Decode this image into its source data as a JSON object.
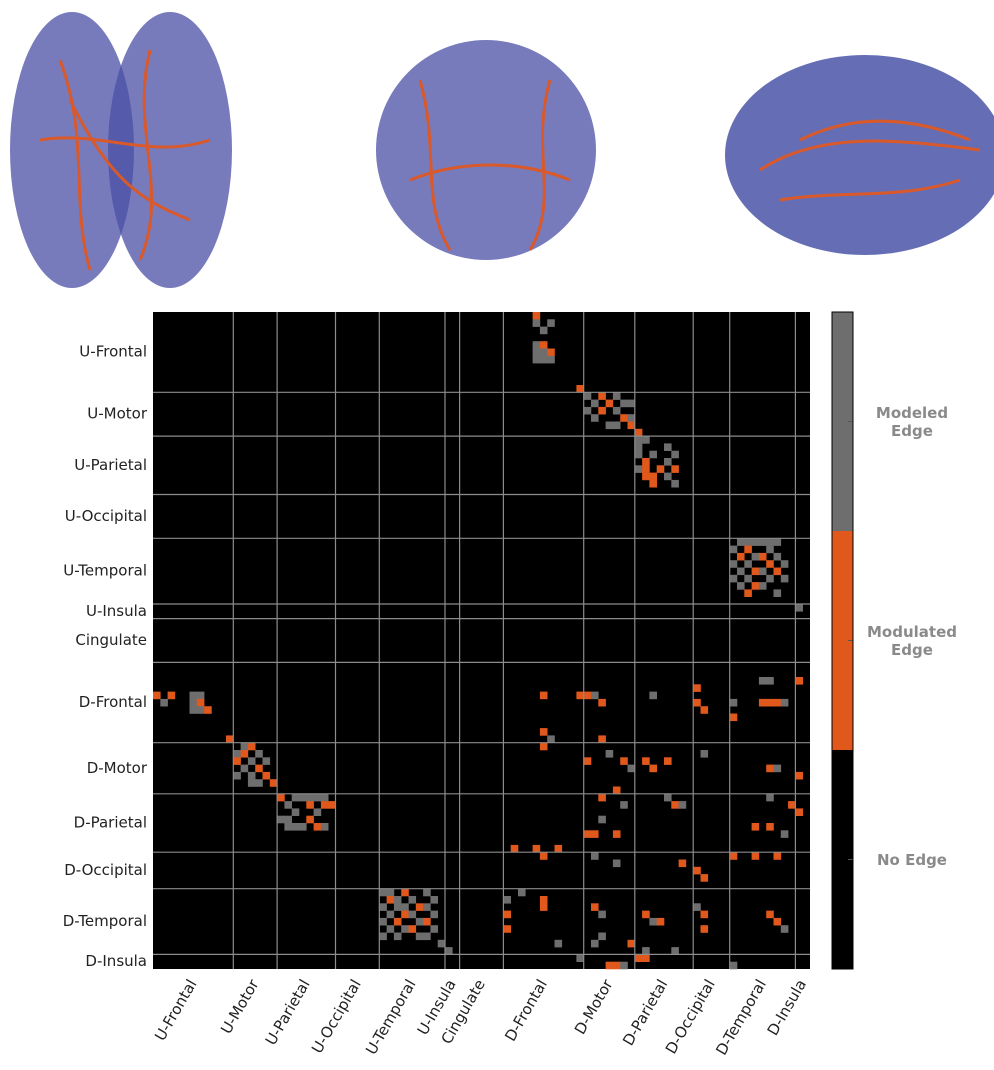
{
  "chart_data": {
    "type": "heatmap",
    "region_labels": [
      "U-Frontal",
      "U-Motor",
      "U-Parietal",
      "U-Occipital",
      "U-Temporal",
      "U-Insula",
      "Cingulate",
      "D-Frontal",
      "D-Motor",
      "D-Parietal",
      "D-Occipital",
      "D-Temporal",
      "D-Insula"
    ],
    "boundaries": [
      0,
      11,
      17,
      25,
      31,
      40,
      42,
      48,
      59,
      66,
      74,
      79,
      88,
      90
    ],
    "value_colors": [
      "#000000",
      "#6e6e6e",
      "#e0581c"
    ],
    "legend": [
      {
        "value": 1,
        "label": "Modeled Edge"
      },
      {
        "value": 2,
        "label": "Modulated Edge"
      },
      {
        "value": 0,
        "label": "No Edge"
      }
    ],
    "cells": [
      [
        0,
        52,
        2
      ],
      [
        1,
        52,
        1
      ],
      [
        1,
        54,
        1
      ],
      [
        2,
        53,
        1
      ],
      [
        4,
        52,
        1
      ],
      [
        4,
        53,
        2
      ],
      [
        5,
        52,
        1
      ],
      [
        5,
        53,
        1
      ],
      [
        5,
        54,
        2
      ],
      [
        6,
        52,
        1
      ],
      [
        6,
        53,
        1
      ],
      [
        6,
        54,
        1
      ],
      [
        10,
        58,
        2
      ],
      [
        11,
        59,
        1
      ],
      [
        11,
        61,
        2
      ],
      [
        11,
        63,
        1
      ],
      [
        12,
        60,
        1
      ],
      [
        12,
        62,
        2
      ],
      [
        12,
        64,
        1
      ],
      [
        12,
        65,
        1
      ],
      [
        13,
        59,
        1
      ],
      [
        13,
        61,
        2
      ],
      [
        13,
        63,
        1
      ],
      [
        14,
        60,
        1
      ],
      [
        14,
        64,
        2
      ],
      [
        14,
        65,
        1
      ],
      [
        15,
        62,
        1
      ],
      [
        15,
        63,
        1
      ],
      [
        15,
        65,
        2
      ],
      [
        16,
        66,
        2
      ],
      [
        17,
        66,
        1
      ],
      [
        17,
        67,
        1
      ],
      [
        18,
        66,
        1
      ],
      [
        18,
        70,
        1
      ],
      [
        19,
        66,
        1
      ],
      [
        19,
        68,
        1
      ],
      [
        19,
        71,
        1
      ],
      [
        20,
        67,
        2
      ],
      [
        20,
        70,
        1
      ],
      [
        21,
        66,
        1
      ],
      [
        21,
        67,
        2
      ],
      [
        21,
        69,
        2
      ],
      [
        21,
        71,
        2
      ],
      [
        22,
        67,
        2
      ],
      [
        22,
        68,
        2
      ],
      [
        22,
        70,
        1
      ],
      [
        23,
        68,
        2
      ],
      [
        23,
        71,
        1
      ],
      [
        31,
        80,
        1
      ],
      [
        31,
        81,
        1
      ],
      [
        31,
        82,
        1
      ],
      [
        31,
        83,
        1
      ],
      [
        31,
        84,
        1
      ],
      [
        31,
        85,
        1
      ],
      [
        32,
        79,
        1
      ],
      [
        32,
        81,
        2
      ],
      [
        32,
        84,
        1
      ],
      [
        33,
        80,
        2
      ],
      [
        33,
        82,
        1
      ],
      [
        33,
        83,
        2
      ],
      [
        33,
        85,
        1
      ],
      [
        34,
        79,
        1
      ],
      [
        34,
        81,
        1
      ],
      [
        34,
        84,
        2
      ],
      [
        34,
        86,
        1
      ],
      [
        35,
        80,
        1
      ],
      [
        35,
        82,
        2
      ],
      [
        35,
        83,
        1
      ],
      [
        35,
        85,
        2
      ],
      [
        36,
        79,
        1
      ],
      [
        36,
        81,
        1
      ],
      [
        36,
        84,
        1
      ],
      [
        36,
        86,
        1
      ],
      [
        37,
        80,
        1
      ],
      [
        37,
        82,
        2
      ],
      [
        37,
        83,
        1
      ],
      [
        38,
        81,
        2
      ],
      [
        38,
        85,
        1
      ],
      [
        40,
        88,
        1
      ],
      [
        52,
        0,
        2
      ],
      [
        52,
        2,
        2
      ],
      [
        52,
        5,
        1
      ],
      [
        52,
        6,
        1
      ],
      [
        53,
        1,
        1
      ],
      [
        53,
        5,
        1
      ],
      [
        53,
        6,
        2
      ],
      [
        54,
        5,
        1
      ],
      [
        54,
        6,
        1
      ],
      [
        54,
        7,
        2
      ],
      [
        58,
        10,
        2
      ],
      [
        59,
        12,
        1
      ],
      [
        59,
        13,
        2
      ],
      [
        60,
        11,
        1
      ],
      [
        60,
        12,
        2
      ],
      [
        60,
        14,
        1
      ],
      [
        61,
        11,
        2
      ],
      [
        61,
        13,
        1
      ],
      [
        61,
        15,
        1
      ],
      [
        62,
        12,
        1
      ],
      [
        62,
        14,
        2
      ],
      [
        63,
        11,
        1
      ],
      [
        63,
        13,
        1
      ],
      [
        63,
        15,
        2
      ],
      [
        64,
        13,
        1
      ],
      [
        64,
        14,
        1
      ],
      [
        64,
        16,
        2
      ],
      [
        66,
        17,
        2
      ],
      [
        66,
        19,
        1
      ],
      [
        66,
        20,
        1
      ],
      [
        66,
        21,
        1
      ],
      [
        66,
        22,
        1
      ],
      [
        66,
        23,
        1
      ],
      [
        67,
        18,
        1
      ],
      [
        67,
        21,
        2
      ],
      [
        67,
        23,
        2
      ],
      [
        67,
        24,
        2
      ],
      [
        68,
        19,
        1
      ],
      [
        68,
        22,
        1
      ],
      [
        69,
        17,
        1
      ],
      [
        69,
        18,
        1
      ],
      [
        69,
        21,
        2
      ],
      [
        70,
        18,
        1
      ],
      [
        70,
        19,
        1
      ],
      [
        70,
        20,
        1
      ],
      [
        70,
        22,
        2
      ],
      [
        70,
        23,
        1
      ],
      [
        79,
        31,
        1
      ],
      [
        79,
        32,
        1
      ],
      [
        79,
        34,
        2
      ],
      [
        79,
        37,
        1
      ],
      [
        80,
        32,
        2
      ],
      [
        80,
        33,
        1
      ],
      [
        80,
        35,
        1
      ],
      [
        80,
        38,
        1
      ],
      [
        81,
        31,
        1
      ],
      [
        81,
        33,
        1
      ],
      [
        81,
        34,
        1
      ],
      [
        81,
        36,
        2
      ],
      [
        81,
        37,
        1
      ],
      [
        82,
        32,
        1
      ],
      [
        82,
        34,
        2
      ],
      [
        82,
        35,
        1
      ],
      [
        82,
        38,
        1
      ],
      [
        83,
        31,
        1
      ],
      [
        83,
        33,
        2
      ],
      [
        83,
        36,
        1
      ],
      [
        83,
        37,
        2
      ],
      [
        84,
        32,
        1
      ],
      [
        84,
        34,
        1
      ],
      [
        84,
        35,
        2
      ],
      [
        84,
        38,
        1
      ],
      [
        85,
        31,
        1
      ],
      [
        85,
        33,
        1
      ],
      [
        85,
        36,
        1
      ],
      [
        85,
        37,
        1
      ],
      [
        86,
        39,
        1
      ],
      [
        87,
        40,
        1
      ],
      [
        50,
        83,
        1
      ],
      [
        50,
        84,
        1
      ],
      [
        50,
        88,
        2
      ],
      [
        52,
        53,
        2
      ],
      [
        52,
        58,
        2
      ],
      [
        52,
        59,
        2
      ],
      [
        52,
        60,
        1
      ],
      [
        53,
        61,
        2
      ],
      [
        52,
        68,
        1
      ],
      [
        51,
        74,
        2
      ],
      [
        53,
        74,
        2
      ],
      [
        54,
        75,
        2
      ],
      [
        53,
        79,
        1
      ],
      [
        53,
        83,
        2
      ],
      [
        53,
        84,
        2
      ],
      [
        53,
        85,
        2
      ],
      [
        53,
        86,
        1
      ],
      [
        55,
        79,
        2
      ],
      [
        57,
        53,
        2
      ],
      [
        58,
        54,
        1
      ],
      [
        59,
        53,
        2
      ],
      [
        58,
        61,
        2
      ],
      [
        60,
        62,
        1
      ],
      [
        61,
        59,
        2
      ],
      [
        61,
        64,
        2
      ],
      [
        62,
        65,
        1
      ],
      [
        61,
        67,
        2
      ],
      [
        62,
        68,
        2
      ],
      [
        61,
        70,
        2
      ],
      [
        60,
        75,
        1
      ],
      [
        62,
        84,
        2
      ],
      [
        62,
        85,
        1
      ],
      [
        63,
        88,
        2
      ],
      [
        65,
        63,
        2
      ],
      [
        66,
        61,
        2
      ],
      [
        67,
        64,
        1
      ],
      [
        66,
        70,
        1
      ],
      [
        67,
        71,
        2
      ],
      [
        67,
        72,
        1
      ],
      [
        66,
        84,
        1
      ],
      [
        67,
        87,
        2
      ],
      [
        68,
        88,
        2
      ],
      [
        69,
        61,
        1
      ],
      [
        71,
        59,
        2
      ],
      [
        71,
        60,
        2
      ],
      [
        71,
        63,
        2
      ],
      [
        70,
        82,
        2
      ],
      [
        70,
        84,
        2
      ],
      [
        71,
        86,
        1
      ],
      [
        73,
        49,
        2
      ],
      [
        73,
        52,
        2
      ],
      [
        74,
        53,
        2
      ],
      [
        73,
        55,
        2
      ],
      [
        74,
        60,
        1
      ],
      [
        75,
        63,
        1
      ],
      [
        74,
        79,
        2
      ],
      [
        74,
        82,
        2
      ],
      [
        74,
        85,
        2
      ],
      [
        75,
        72,
        2
      ],
      [
        76,
        74,
        2
      ],
      [
        77,
        75,
        2
      ],
      [
        79,
        50,
        1
      ],
      [
        80,
        48,
        1
      ],
      [
        80,
        53,
        2
      ],
      [
        81,
        53,
        2
      ],
      [
        82,
        48,
        2
      ],
      [
        81,
        60,
        2
      ],
      [
        82,
        61,
        1
      ],
      [
        82,
        67,
        2
      ],
      [
        83,
        68,
        1
      ],
      [
        83,
        69,
        2
      ],
      [
        81,
        74,
        1
      ],
      [
        82,
        75,
        2
      ],
      [
        84,
        75,
        2
      ],
      [
        82,
        84,
        2
      ],
      [
        83,
        85,
        2
      ],
      [
        84,
        86,
        1
      ],
      [
        85,
        61,
        1
      ],
      [
        86,
        60,
        1
      ],
      [
        86,
        65,
        2
      ],
      [
        87,
        67,
        1
      ],
      [
        88,
        58,
        1
      ],
      [
        88,
        66,
        2
      ],
      [
        88,
        67,
        2
      ],
      [
        89,
        62,
        2
      ],
      [
        89,
        63,
        2
      ],
      [
        89,
        64,
        1
      ],
      [
        89,
        79,
        1
      ],
      [
        84,
        48,
        2
      ],
      [
        86,
        55,
        1
      ],
      [
        87,
        71,
        1
      ]
    ]
  }
}
